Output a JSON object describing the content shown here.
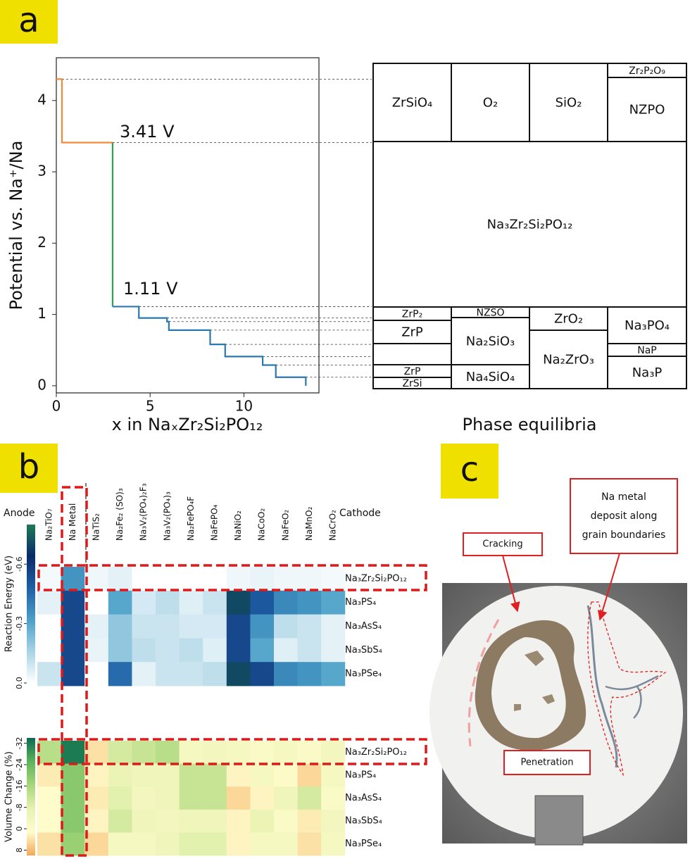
{
  "panel_labels": [
    "a",
    "b",
    "c"
  ],
  "chart_data": [
    {
      "type": "line",
      "annotations": [
        "3.41 V",
        "1.11 V"
      ],
      "xlabel": "x in NaₓZr₂Si₂PO₁₂",
      "ylabel": "Potential vs. Na⁺/Na",
      "xlim": [
        0,
        14
      ],
      "ylim": [
        -0.1,
        4.6
      ],
      "xticks": [
        0,
        5,
        10
      ],
      "yticks": [
        0,
        1,
        2,
        3,
        4
      ],
      "series": [
        {
          "color": "#f28a3a",
          "x": [
            0,
            0.3,
            0.3,
            3
          ],
          "values": [
            4.3,
            4.3,
            3.41,
            3.41
          ]
        },
        {
          "color": "#2ca24a",
          "x": [
            3,
            3
          ],
          "values": [
            3.41,
            1.11
          ]
        },
        {
          "color": "#2a78b0",
          "x": [
            3,
            4.4,
            4.4,
            5.9,
            5.9,
            6.0,
            6.0,
            8.2,
            8.2,
            9.0,
            9.0,
            11.0,
            11.0,
            11.7,
            11.7,
            13.3,
            13.3
          ],
          "values": [
            1.11,
            1.11,
            0.95,
            0.95,
            0.9,
            0.9,
            0.78,
            0.78,
            0.58,
            0.58,
            0.41,
            0.41,
            0.29,
            0.29,
            0.12,
            0.12,
            0
          ]
        }
      ]
    },
    {
      "type": "heatmap",
      "column_group_labels": [
        "Anode",
        "Cathode"
      ],
      "columns": [
        "Na₂TiO₇",
        "Na Metal",
        "NaTiS₂",
        "Na₂Fe₂ (SO)₃",
        "Na₃V₂(PO₄)₂F₃",
        "Na₃V₂(PO₄)₃",
        "Na₂FePO₄F",
        "NaFePO₄",
        "NaNiO₂",
        "NaCoO₂",
        "NaFeO₂",
        "NaMnO₂",
        "NaCrO₂"
      ],
      "rows": [
        "Na₃Zr₂Si₂PO₁₂",
        "Na₃PS₄",
        "Na₃AsS₄",
        "Na₃SbS₄",
        "Na₃PSe₄"
      ],
      "colorbar_label": "Reaction Energy (eV)",
      "vlim": [
        -0.8,
        0
      ],
      "cticks": [
        -0.6,
        -0.3,
        {
          "value": 0,
          "label": "0.0"
        }
      ],
      "colormap": [
        "#1e7a55",
        "#0a2a6a",
        "#1f5fa5",
        "#4ba0c8",
        "#a8d3e6",
        "#ffffff"
      ],
      "values": [
        [
          -0.02,
          -0.35,
          -0.03,
          -0.05,
          0,
          0,
          0,
          0,
          -0.03,
          -0.04,
          -0.03,
          -0.03,
          -0.02
        ],
        [
          -0.05,
          -0.55,
          0,
          -0.3,
          -0.08,
          -0.12,
          -0.06,
          -0.1,
          -0.7,
          -0.5,
          -0.38,
          -0.35,
          -0.3
        ],
        [
          0,
          -0.55,
          -0.05,
          -0.2,
          -0.1,
          -0.1,
          -0.08,
          -0.08,
          -0.55,
          -0.35,
          -0.12,
          -0.1,
          -0.05
        ],
        [
          0,
          -0.55,
          -0.04,
          -0.2,
          -0.12,
          -0.1,
          -0.12,
          -0.06,
          -0.55,
          -0.3,
          -0.06,
          -0.1,
          -0.05
        ],
        [
          -0.1,
          -0.55,
          0,
          -0.45,
          -0.05,
          -0.1,
          -0.1,
          -0.12,
          -0.7,
          -0.55,
          -0.38,
          -0.35,
          -0.3
        ]
      ]
    },
    {
      "type": "heatmap",
      "rows": [
        "Na₃Zr₂Si₂PO₁₂",
        "Na₃PS₄",
        "Na₃AsS₄",
        "Na₃SbS₄",
        "Na₃PSe₄"
      ],
      "colorbar_label": "Volume Change (%)",
      "vlim": [
        -34,
        10
      ],
      "cticks": [
        -32,
        -24,
        -16,
        -8,
        0,
        8
      ],
      "colormap": [
        "#0b6b50",
        "#5cb35a",
        "#a8d67a",
        "#e6f2b0",
        "#fffccc",
        "#f5a855"
      ],
      "values": [
        [
          -14,
          -32,
          4,
          -10,
          -12,
          -14,
          -2,
          -3,
          -2,
          -1,
          -2,
          -1,
          -3
        ],
        [
          3,
          -20,
          2,
          -6,
          -4,
          -4,
          -12,
          -12,
          2,
          -2,
          0,
          5,
          -2
        ],
        [
          1,
          -20,
          3,
          -8,
          -3,
          -4,
          -12,
          -12,
          5,
          2,
          -4,
          -10,
          -1
        ],
        [
          1,
          -20,
          2,
          -10,
          -4,
          -3,
          -4,
          -4,
          2,
          -6,
          -1,
          3,
          -3
        ],
        [
          4,
          -18,
          5,
          -2,
          -2,
          -4,
          -8,
          -8,
          2,
          -2,
          -2,
          4,
          -2
        ]
      ]
    }
  ],
  "phase_equilibria": {
    "title": "Phase equilibria",
    "labels": [
      "ZrSiO₄",
      "O₂",
      "SiO₂",
      "Zr₂P₂O₉",
      "NZPO",
      "Na₃Zr₂Si₂PO₁₂",
      "ZrP₂",
      "ZrP",
      "ZrP",
      "ZrSi",
      "NZSO",
      "Na₂SiO₃",
      "Na₄SiO₄",
      "ZrO₂",
      "Na₂ZrO₃",
      "Na₃PO₄",
      "NaP",
      "Na₃P"
    ]
  },
  "photo": {
    "cracking": "Cracking",
    "deposit": [
      "Na metal",
      "deposit along",
      "grain boundaries"
    ],
    "penetration": "Penetration"
  }
}
